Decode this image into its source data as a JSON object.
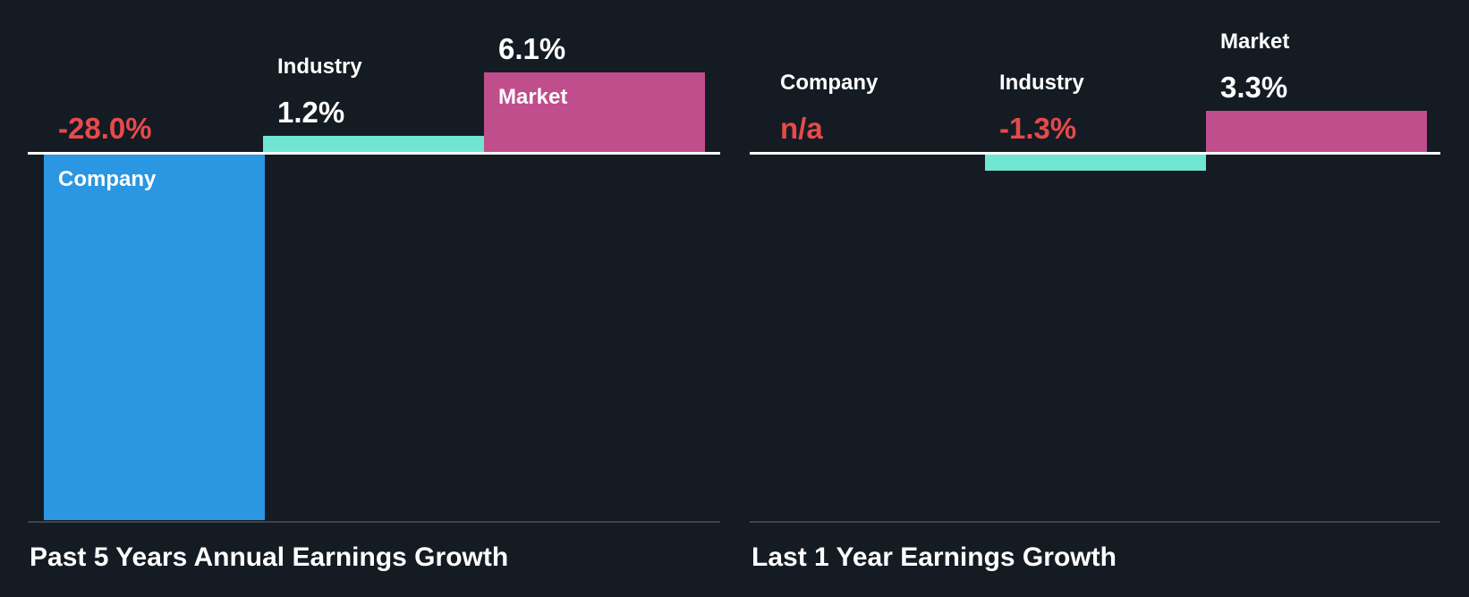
{
  "page": {
    "background": "#151B23"
  },
  "colors": {
    "company_bar": "#2B96E1",
    "industry_bar": "#70E5D2",
    "market_bar": "#C04D8C",
    "negative_value_text": "#E64A4A",
    "label_text": "#FFFFFF",
    "baseline_line": "#FFFFFF",
    "bottom_axis_line": "#3E444E"
  },
  "chart_data": [
    {
      "type": "bar",
      "title": "Past 5 Years Annual Earnings Growth",
      "unit": "%",
      "categories": [
        "Company",
        "Industry",
        "Market"
      ],
      "values": [
        -28.0,
        1.2,
        6.1
      ],
      "value_labels": [
        "-28.0%",
        "1.2%",
        "6.1%"
      ],
      "bar_colors": [
        "#2B96E1",
        "#70E5D2",
        "#C04D8C"
      ],
      "baseline": 0,
      "grid": false,
      "legend": "none"
    },
    {
      "type": "bar",
      "title": "Last 1 Year Earnings Growth",
      "unit": "%",
      "categories": [
        "Company",
        "Industry",
        "Market"
      ],
      "values": [
        null,
        -1.3,
        3.3
      ],
      "value_labels": [
        "n/a",
        "-1.3%",
        "3.3%"
      ],
      "bar_colors": [
        "#2B96E1",
        "#70E5D2",
        "#C04D8C"
      ],
      "baseline": 0,
      "grid": false,
      "legend": "none"
    }
  ]
}
